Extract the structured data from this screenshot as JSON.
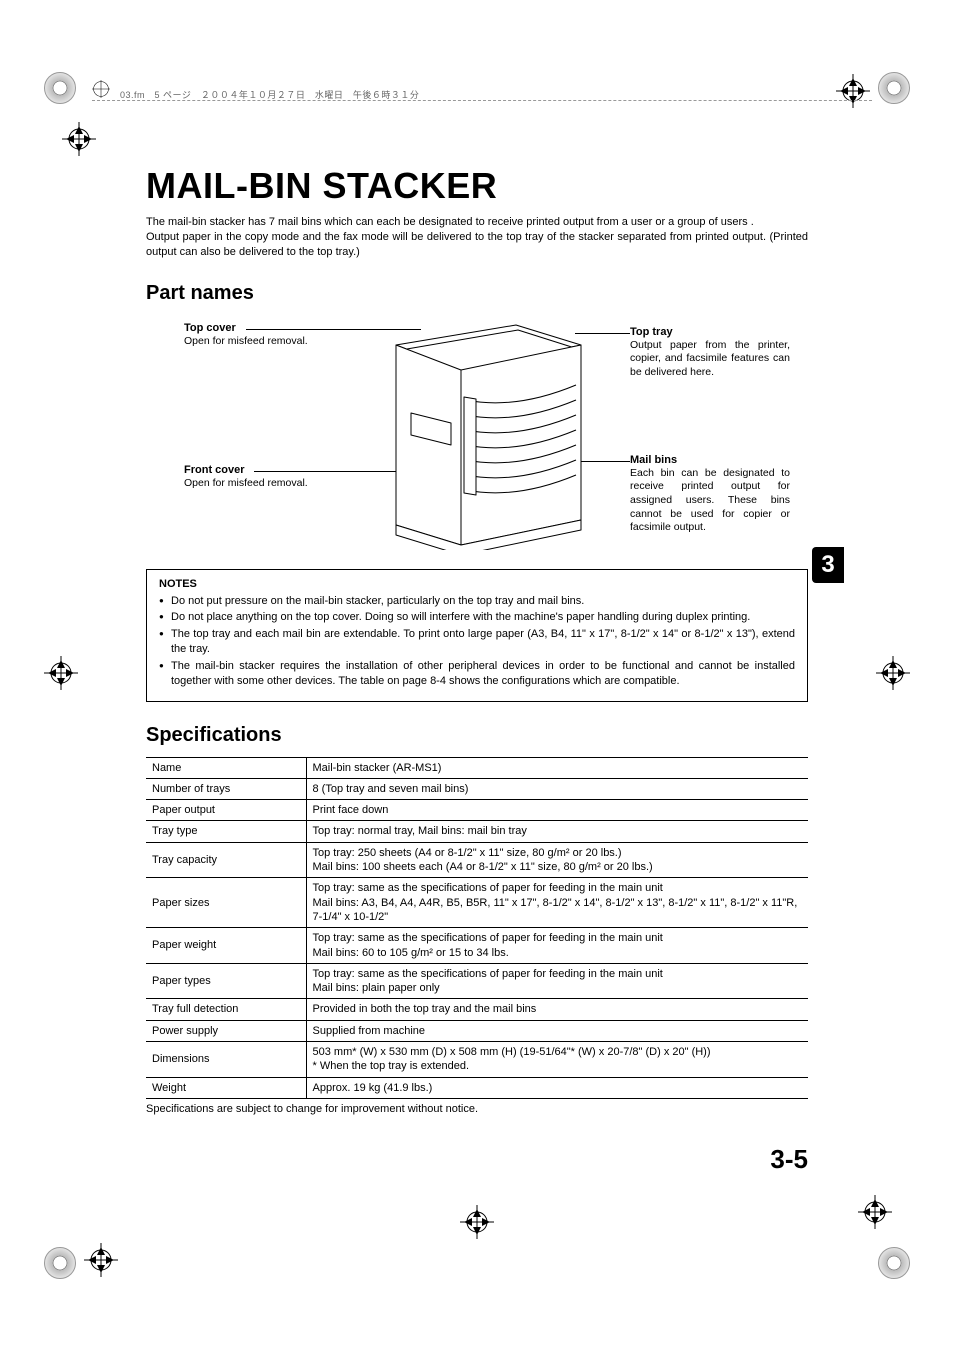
{
  "header_text": "03.fm　5 ページ　２００４年１０月２７日　水曜日　午後６時３１分",
  "title": "MAIL-BIN STACKER",
  "intro_p1": "The mail-bin stacker has 7 mail bins which can each be designated to receive printed output from a user or a group of users .",
  "intro_p2": "Output paper in the copy mode and the fax mode will be delivered to the top tray of the stacker separated from printed output. (Printed output can also be delivered to the top tray.)",
  "parts": {
    "heading": "Part names",
    "top_cover": {
      "label": "Top cover",
      "desc": "Open for misfeed removal."
    },
    "front_cover": {
      "label": "Front cover",
      "desc": "Open for misfeed removal."
    },
    "top_tray": {
      "label": "Top tray",
      "desc": "Output paper from the printer, copier, and facsimile features can be delivered here."
    },
    "mail_bins": {
      "label": "Mail bins",
      "desc": "Each bin can be designated to receive printed output for assigned users. These bins cannot be used for copier or facsimile output."
    }
  },
  "thumb_tab": "3",
  "notes": {
    "title": "NOTES",
    "items": [
      "Do not put pressure on the mail-bin stacker, particularly on the top tray and mail bins.",
      "Do not place anything on the top cover. Doing so will interfere with the machine's paper handling during duplex printing.",
      "The top tray and each mail bin are extendable. To print onto large paper (A3, B4, 11\" x 17\", 8-1/2\" x 14\" or  8-1/2\" x 13\"), extend the tray.",
      "The mail-bin stacker requires the installation of other peripheral devices in order to be functional and cannot be installed together with some other devices. The table on page 8-4 shows the configurations which are compatible."
    ]
  },
  "specs": {
    "heading": "Specifications",
    "rows": [
      [
        "Name",
        "Mail-bin stacker (AR-MS1)"
      ],
      [
        "Number of trays",
        "8 (Top tray and seven mail bins)"
      ],
      [
        "Paper output",
        "Print face down"
      ],
      [
        "Tray type",
        "Top tray: normal tray, Mail bins: mail bin tray"
      ],
      [
        "Tray capacity",
        "Top tray: 250 sheets (A4 or 8-1/2\" x 11\" size, 80 g/m² or 20 lbs.)\nMail bins: 100 sheets each (A4 or 8-1/2\" x 11\" size, 80 g/m² or 20 lbs.)"
      ],
      [
        "Paper sizes",
        "Top tray: same as the specifications of paper for feeding in the main unit\nMail bins: A3, B4, A4, A4R, B5, B5R, 11\" x 17\", 8-1/2\" x 14\", 8-1/2\" x 13\", 8-1/2\" x 11\", 8-1/2\" x 11\"R, 7-1/4\" x 10-1/2\""
      ],
      [
        "Paper weight",
        "Top tray: same as the specifications of paper for feeding in the main unit\nMail bins: 60 to 105 g/m² or 15 to 34 lbs."
      ],
      [
        "Paper types",
        "Top tray: same as the specifications of paper for feeding in the main unit\nMail bins: plain paper only"
      ],
      [
        "Tray full detection",
        "Provided in both the top tray and the mail bins"
      ],
      [
        "Power supply",
        "Supplied from machine"
      ],
      [
        "Dimensions",
        "503 mm* (W) x 530 mm (D) x 508 mm (H) (19-51/64\"* (W) x 20-7/8\" (D) x 20\" (H))\n*  When the top tray is extended."
      ],
      [
        "Weight",
        "Approx. 19 kg (41.9 lbs.)"
      ]
    ],
    "footnote": "Specifications are subject to change for improvement without notice."
  },
  "page_number": "3-5",
  "colors": {
    "text": "#000000",
    "bg": "#ffffff",
    "tab_bg": "#000000",
    "tab_fg": "#ffffff"
  }
}
